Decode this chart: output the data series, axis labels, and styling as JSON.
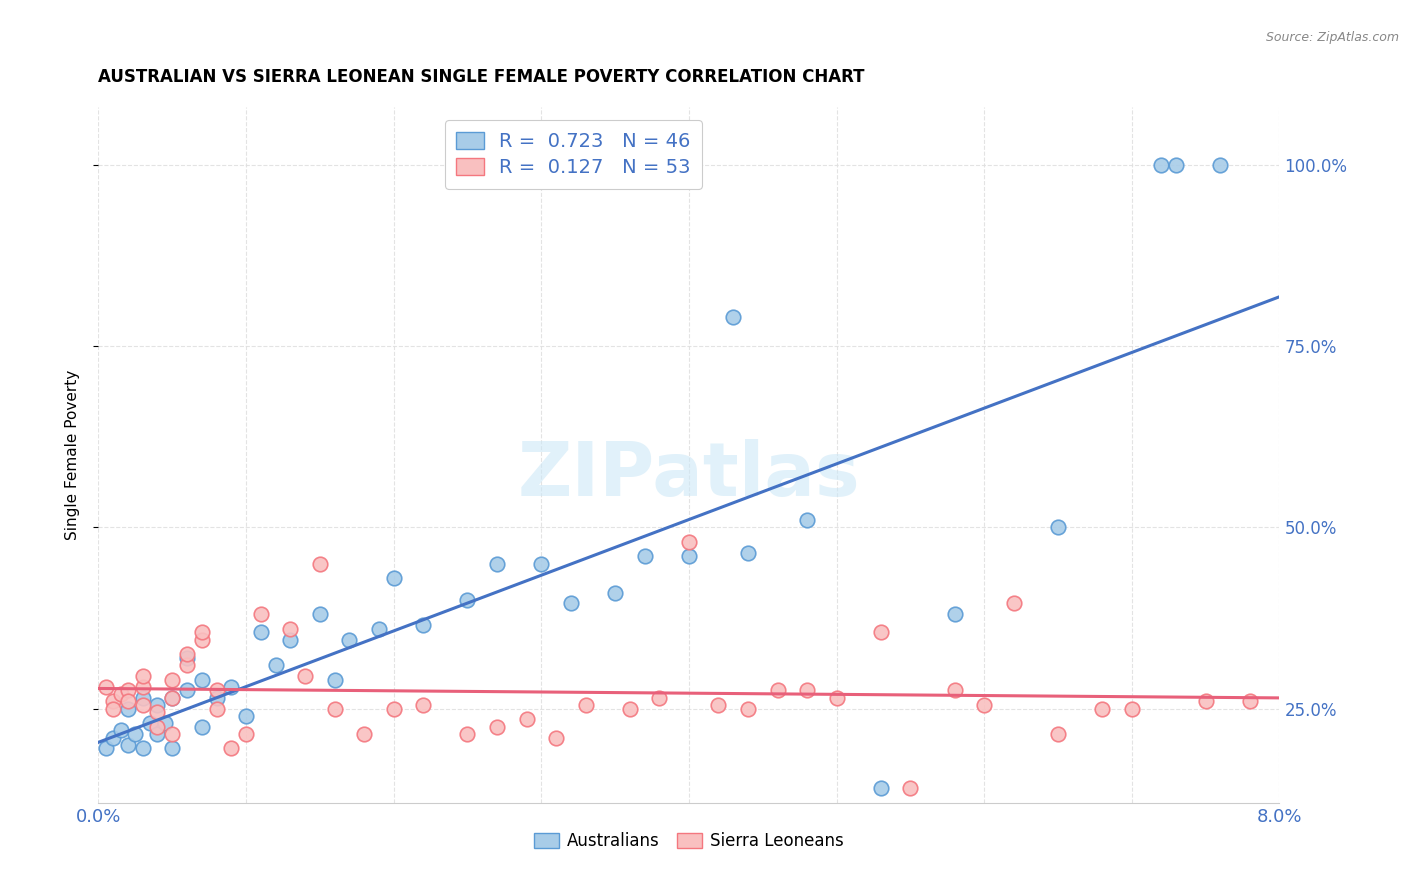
{
  "title": "AUSTRALIAN VS SIERRA LEONEAN SINGLE FEMALE POVERTY CORRELATION CHART",
  "source": "Source: ZipAtlas.com",
  "ylabel": "Single Female Poverty",
  "ytick_labels": [
    "25.0%",
    "50.0%",
    "75.0%",
    "100.0%"
  ],
  "ytick_values": [
    0.25,
    0.5,
    0.75,
    1.0
  ],
  "xlim": [
    0.0,
    0.08
  ],
  "ylim": [
    0.12,
    1.08
  ],
  "watermark": "ZIPatlas",
  "legend_R_aus": "R =  0.723",
  "legend_N_aus": "N = 46",
  "legend_R_sl": "R =  0.127",
  "legend_N_sl": "N = 53",
  "aus_color": "#a8cce8",
  "sl_color": "#f9c0c0",
  "aus_edge_color": "#5b9bd5",
  "sl_edge_color": "#f4777f",
  "aus_line_color": "#4472c4",
  "sl_line_color": "#e8607a",
  "tick_color": "#4472c4",
  "background_color": "#ffffff",
  "grid_color": "#e0e0e0",
  "aus_x": [
    0.0005,
    0.001,
    0.0015,
    0.002,
    0.002,
    0.0025,
    0.003,
    0.003,
    0.0035,
    0.004,
    0.004,
    0.0045,
    0.005,
    0.005,
    0.006,
    0.006,
    0.007,
    0.007,
    0.008,
    0.009,
    0.01,
    0.011,
    0.012,
    0.013,
    0.015,
    0.016,
    0.017,
    0.019,
    0.02,
    0.022,
    0.025,
    0.027,
    0.03,
    0.032,
    0.035,
    0.037,
    0.04,
    0.043,
    0.044,
    0.048,
    0.053,
    0.058,
    0.065,
    0.072,
    0.073,
    0.076
  ],
  "aus_y": [
    0.195,
    0.21,
    0.22,
    0.2,
    0.25,
    0.215,
    0.195,
    0.265,
    0.23,
    0.215,
    0.255,
    0.23,
    0.195,
    0.265,
    0.275,
    0.32,
    0.225,
    0.29,
    0.265,
    0.28,
    0.24,
    0.355,
    0.31,
    0.345,
    0.38,
    0.29,
    0.345,
    0.36,
    0.43,
    0.365,
    0.4,
    0.45,
    0.45,
    0.395,
    0.41,
    0.46,
    0.46,
    0.79,
    0.465,
    0.51,
    0.14,
    0.38,
    0.5,
    1.0,
    1.0,
    1.0
  ],
  "sl_x": [
    0.0005,
    0.001,
    0.001,
    0.0015,
    0.002,
    0.002,
    0.003,
    0.003,
    0.003,
    0.004,
    0.004,
    0.005,
    0.005,
    0.005,
    0.006,
    0.006,
    0.007,
    0.007,
    0.008,
    0.008,
    0.009,
    0.01,
    0.011,
    0.013,
    0.014,
    0.015,
    0.016,
    0.018,
    0.02,
    0.022,
    0.025,
    0.027,
    0.029,
    0.031,
    0.033,
    0.036,
    0.038,
    0.04,
    0.042,
    0.044,
    0.046,
    0.048,
    0.05,
    0.053,
    0.055,
    0.058,
    0.06,
    0.062,
    0.065,
    0.068,
    0.07,
    0.075,
    0.078
  ],
  "sl_y": [
    0.28,
    0.26,
    0.25,
    0.27,
    0.275,
    0.26,
    0.255,
    0.28,
    0.295,
    0.225,
    0.245,
    0.215,
    0.265,
    0.29,
    0.31,
    0.325,
    0.345,
    0.355,
    0.275,
    0.25,
    0.195,
    0.215,
    0.38,
    0.36,
    0.295,
    0.45,
    0.25,
    0.215,
    0.25,
    0.255,
    0.215,
    0.225,
    0.235,
    0.21,
    0.255,
    0.25,
    0.265,
    0.48,
    0.255,
    0.25,
    0.275,
    0.275,
    0.265,
    0.355,
    0.14,
    0.275,
    0.255,
    0.395,
    0.215,
    0.25,
    0.25,
    0.26,
    0.26
  ]
}
